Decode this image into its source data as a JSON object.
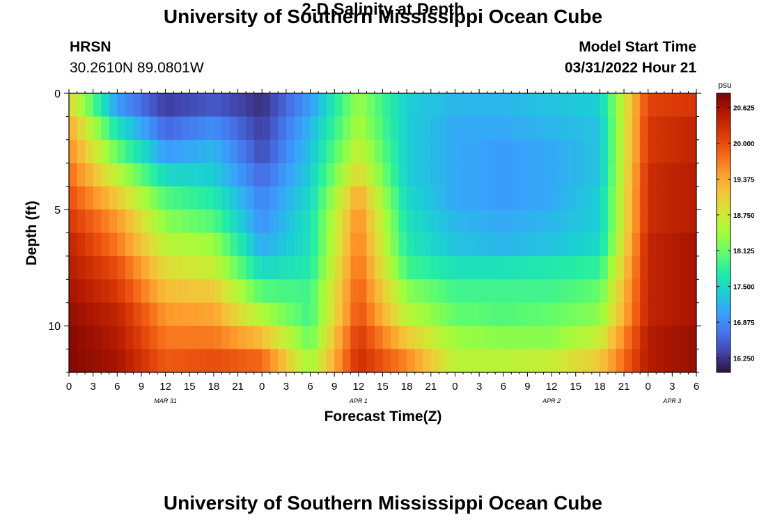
{
  "header": {
    "title": "University of Southern Mississippi Ocean Cube",
    "station": "HRSN",
    "coordinates": "30.2610N  89.0801W",
    "subtitle": "2-D Salinity at Depth",
    "start_label": "Model Start Time",
    "start_value": "03/31/2022 Hour 21",
    "footer_title": "University of Southern Mississippi Ocean Cube"
  },
  "colors": {
    "scale": [
      "#30123b",
      "#4145ab",
      "#4675ed",
      "#39a2fc",
      "#1bcfd4",
      "#24eca6",
      "#61fc6c",
      "#a4fc3b",
      "#d1e834",
      "#f3c63a",
      "#fe9b2d",
      "#f36315",
      "#d93806",
      "#b11901",
      "#7a0403"
    ]
  },
  "chart_data": {
    "type": "heatmap",
    "title": "2-D Salinity at Depth",
    "xlabel": "Forecast Time(Z)",
    "ylabel": "Depth (ft)",
    "units": "psu",
    "x_tick_labels": [
      "0",
      "3",
      "6",
      "9",
      "12",
      "15",
      "18",
      "21",
      "0",
      "3",
      "6",
      "9",
      "12",
      "15",
      "18",
      "21",
      "0",
      "3",
      "6",
      "9",
      "12",
      "15",
      "18",
      "21",
      "0",
      "3",
      "6"
    ],
    "x_hours_range": [
      0,
      78
    ],
    "day_labels": [
      {
        "label": "MAR 31",
        "hour": 12
      },
      {
        "label": "APR 1",
        "hour": 36
      },
      {
        "label": "APR 2",
        "hour": 60
      },
      {
        "label": "APR 3",
        "hour": 75
      }
    ],
    "y_tick_labels": [
      "0",
      "5",
      "10"
    ],
    "y_ticks": [
      0,
      5,
      10
    ],
    "ylim": [
      0,
      12
    ],
    "colorbar": {
      "min": 16.0,
      "max": 20.875,
      "tick_values": [
        16.25,
        16.875,
        17.5,
        18.125,
        18.75,
        19.375,
        20.0,
        20.625
      ],
      "tick_labels": [
        "16.250",
        "16.875",
        "17.500",
        "18.125",
        "18.750",
        "19.375",
        "20.000",
        "20.625"
      ]
    },
    "depth_levels_ft": [
      0.5,
      1.5,
      2.5,
      3.5,
      4.5,
      5.5,
      6.5,
      7.5,
      8.5,
      9.5,
      10.5,
      11.5
    ],
    "time_hours": [
      0,
      6,
      12,
      18,
      24,
      30,
      36,
      42,
      48,
      54,
      60,
      66,
      72,
      78
    ],
    "salinity": [
      [
        19.0,
        17.0,
        16.3,
        16.5,
        16.2,
        17.0,
        18.4,
        17.4,
        17.2,
        17.2,
        17.3,
        17.4,
        20.1,
        20.2
      ],
      [
        19.4,
        17.6,
        16.6,
        16.9,
        16.3,
        17.2,
        18.5,
        17.4,
        17.1,
        17.1,
        17.2,
        17.3,
        20.2,
        20.4
      ],
      [
        19.6,
        18.1,
        17.0,
        17.2,
        16.4,
        17.3,
        18.7,
        17.4,
        17.1,
        17.0,
        17.1,
        17.3,
        20.2,
        20.4
      ],
      [
        19.8,
        18.6,
        17.5,
        17.4,
        16.6,
        17.4,
        19.0,
        17.4,
        17.1,
        17.0,
        17.1,
        17.3,
        20.3,
        20.5
      ],
      [
        20.0,
        19.1,
        18.0,
        17.7,
        16.8,
        17.5,
        19.4,
        17.5,
        17.1,
        17.0,
        17.1,
        17.4,
        20.3,
        20.5
      ],
      [
        20.2,
        19.5,
        18.3,
        18.0,
        16.9,
        17.6,
        19.6,
        17.6,
        17.2,
        17.1,
        17.2,
        17.4,
        20.3,
        20.5
      ],
      [
        20.4,
        19.7,
        18.6,
        18.4,
        17.1,
        17.6,
        19.7,
        17.7,
        17.3,
        17.2,
        17.3,
        17.5,
        20.4,
        20.6
      ],
      [
        20.5,
        20.0,
        18.9,
        18.7,
        17.5,
        17.7,
        19.8,
        17.9,
        17.6,
        17.6,
        17.7,
        17.8,
        20.4,
        20.6
      ],
      [
        20.6,
        20.2,
        19.2,
        19.1,
        18.0,
        17.9,
        19.9,
        18.3,
        17.9,
        17.9,
        17.9,
        18.1,
        20.4,
        20.6
      ],
      [
        20.7,
        20.4,
        19.5,
        19.4,
        18.5,
        17.9,
        20.0,
        18.6,
        18.1,
        18.0,
        18.1,
        18.3,
        20.4,
        20.6
      ],
      [
        20.8,
        20.5,
        19.7,
        19.7,
        19.2,
        18.1,
        20.2,
        19.1,
        18.4,
        18.3,
        18.3,
        18.7,
        20.5,
        20.7
      ],
      [
        20.8,
        20.6,
        19.9,
        20.0,
        19.8,
        18.4,
        20.3,
        19.6,
        18.6,
        18.6,
        18.7,
        19.1,
        20.5,
        20.7
      ]
    ]
  }
}
